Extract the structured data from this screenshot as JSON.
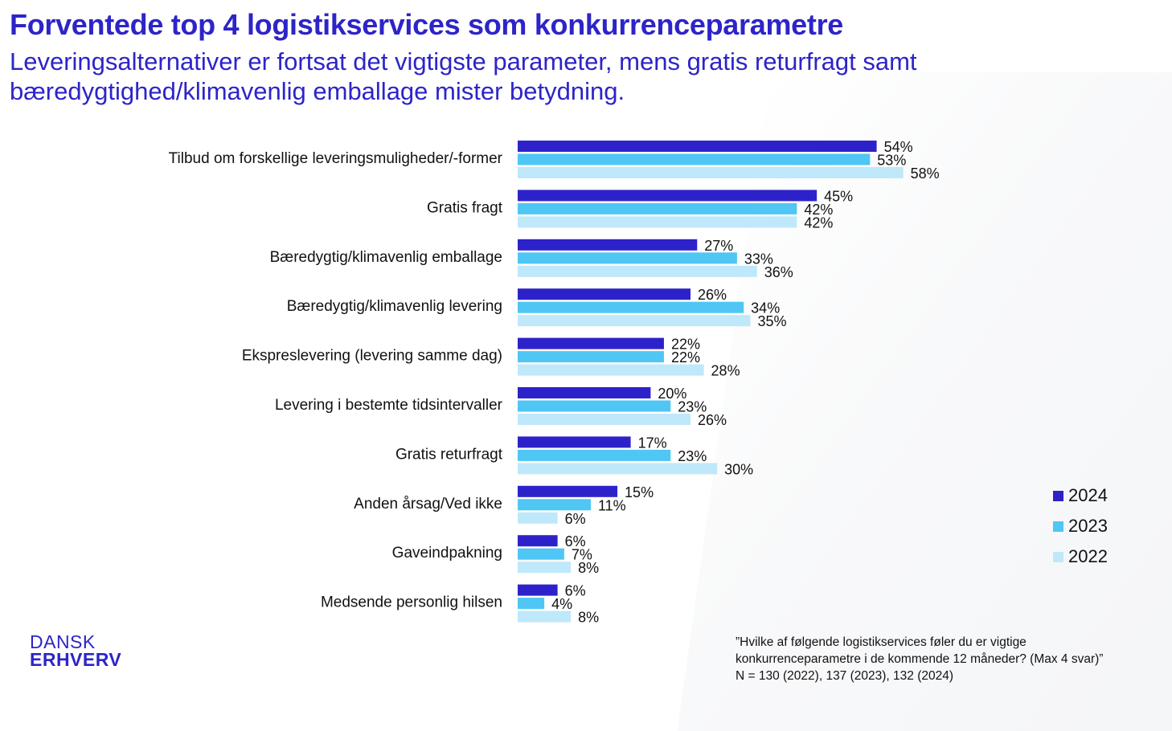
{
  "header": {
    "title": "Forventede top 4 logistikservices som konkurrenceparametre",
    "subtitle": "Leveringsalternativer er fortsat det vigtigste parameter, mens gratis returfragt samt bæredygtighed/klimavenlig emballage mister betydning."
  },
  "chart_data": {
    "type": "bar",
    "orientation": "horizontal",
    "categories": [
      "Tilbud om forskellige leveringsmuligheder/-former",
      "Gratis fragt",
      "Bæredygtig/klimavenlig emballage",
      "Bæredygtig/klimavenlig levering",
      "Ekspreslevering (levering samme dag)",
      "Levering i bestemte tidsintervaller",
      "Gratis returfragt",
      "Anden årsag/Ved ikke",
      "Gaveindpakning",
      "Medsende personlig hilsen"
    ],
    "series": [
      {
        "name": "2024",
        "color": "#2d22c9",
        "values": [
          54,
          45,
          27,
          26,
          22,
          20,
          17,
          15,
          6,
          6
        ]
      },
      {
        "name": "2023",
        "color": "#4fc6f4",
        "values": [
          53,
          42,
          33,
          34,
          22,
          23,
          23,
          11,
          7,
          4
        ]
      },
      {
        "name": "2022",
        "color": "#bfe8fa",
        "values": [
          58,
          42,
          36,
          35,
          28,
          26,
          30,
          6,
          8,
          8
        ]
      }
    ],
    "value_suffix": "%",
    "xlim": [
      0,
      60
    ],
    "grid": false,
    "legend_position": "right"
  },
  "legend": {
    "items": [
      {
        "label": "2024",
        "color": "#2d22c9"
      },
      {
        "label": "2023",
        "color": "#4fc6f4"
      },
      {
        "label": "2022",
        "color": "#bfe8fa"
      }
    ]
  },
  "logo": {
    "line1": "DANSK",
    "line2": "ERHVERV"
  },
  "footnote": {
    "line1": "”Hvilke af følgende logistikservices føler du er vigtige",
    "line2": "konkurrenceparametre i de kommende 12 måneder? (Max 4 svar)”",
    "line3": "N = 130 (2022), 137 (2023), 132 (2024)"
  }
}
